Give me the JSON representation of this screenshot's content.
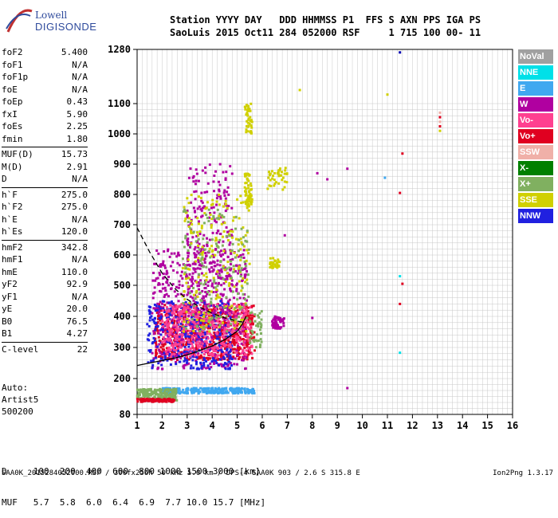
{
  "logo": {
    "line1": "Lowell",
    "line2": "DIGISONDE"
  },
  "header": {
    "row1": "Station YYYY DAY   DDD HHMMSS P1  FFS S AXN PPS IGA PS",
    "row2": "SaoLuis 2015 Oct11 284 052000 RSF     1 715 100 00- 11"
  },
  "params": [
    {
      "group": [
        {
          "label": "foF2",
          "value": "5.400"
        },
        {
          "label": "foF1",
          "value": "N/A"
        },
        {
          "label": "foF1p",
          "value": "N/A"
        },
        {
          "label": "foE",
          "value": "N/A"
        },
        {
          "label": "foEp",
          "value": "0.43"
        },
        {
          "label": "fxI",
          "value": "5.90"
        },
        {
          "label": "foEs",
          "value": "2.25"
        },
        {
          "label": "fmin",
          "value": "1.80"
        }
      ]
    },
    {
      "group": [
        {
          "label": "MUF(D)",
          "value": "15.73"
        },
        {
          "label": "M(D)",
          "value": "2.91"
        },
        {
          "label": "D",
          "value": "N/A"
        }
      ]
    },
    {
      "group": [
        {
          "label": "h`F",
          "value": "275.0"
        },
        {
          "label": "h`F2",
          "value": "275.0"
        },
        {
          "label": "h`E",
          "value": "N/A"
        },
        {
          "label": "h`Es",
          "value": "120.0"
        }
      ]
    },
    {
      "group": [
        {
          "label": "hmF2",
          "value": "342.8"
        },
        {
          "label": "hmF1",
          "value": "N/A"
        },
        {
          "label": "hmE",
          "value": "110.0"
        },
        {
          "label": "yF2",
          "value": "92.9"
        },
        {
          "label": "yF1",
          "value": "N/A"
        },
        {
          "label": "yE",
          "value": "20.0"
        },
        {
          "label": "B0",
          "value": "76.5"
        },
        {
          "label": "B1",
          "value": "4.27"
        }
      ]
    },
    {
      "group": [
        {
          "label": "C-level",
          "value": "22"
        }
      ]
    }
  ],
  "auto": {
    "line1": "Auto:",
    "line2": "Artist5",
    "line3": "500200"
  },
  "legend": [
    {
      "label": "NoVal",
      "color": "#a0a0a0"
    },
    {
      "label": "NNE",
      "color": "#00e0e8"
    },
    {
      "label": "E",
      "color": "#40a8f0"
    },
    {
      "label": "W",
      "color": "#b000a0"
    },
    {
      "label": "Vo-",
      "color": "#ff4090"
    },
    {
      "label": "Vo+",
      "color": "#e00020"
    },
    {
      "label": "SSW",
      "color": "#f0b0a8"
    },
    {
      "label": "X-",
      "color": "#008000"
    },
    {
      "label": "X+",
      "color": "#80b060"
    },
    {
      "label": "SSE",
      "color": "#d0d000"
    },
    {
      "label": "NNW",
      "color": "#2020e0"
    }
  ],
  "distance_table": {
    "row1": "D     100  200  400  600  800 1000 1500 3000 [km]",
    "row2": "MUF   5.7  5.8  6.0  6.4  6.9  7.7 10.0 15.7 [MHz]"
  },
  "footer": {
    "text": "SAA0K_2015284052000.RSF / 300fx256h 50 kHz 5.0 km / DPS-4 SAA0K 903 / 2.6 S 315.8 E",
    "version": "Ion2Png 1.3.17"
  },
  "chart_data": {
    "type": "scatter",
    "xlabel": "",
    "ylabel": "",
    "xlim": [
      1,
      16
    ],
    "ylim": [
      80,
      1280
    ],
    "x_ticks": [
      1,
      2,
      3,
      4,
      5,
      6,
      7,
      8,
      9,
      10,
      11,
      12,
      13,
      14,
      15,
      16
    ],
    "y_ticks": [
      80,
      200,
      300,
      400,
      500,
      600,
      700,
      800,
      900,
      1000,
      1100,
      1280
    ],
    "grid": true,
    "legend_position": "right",
    "profile_solid": [
      [
        1.0,
        242
      ],
      [
        1.5,
        250
      ],
      [
        2.0,
        258
      ],
      [
        2.5,
        266
      ],
      [
        3.0,
        276
      ],
      [
        3.5,
        290
      ],
      [
        4.0,
        305
      ],
      [
        4.5,
        325
      ],
      [
        5.0,
        352
      ],
      [
        5.2,
        375
      ],
      [
        5.35,
        400
      ]
    ],
    "profile_dashed": [
      [
        1.0,
        690
      ],
      [
        1.5,
        610
      ],
      [
        2.0,
        540
      ],
      [
        2.5,
        490
      ],
      [
        3.0,
        455
      ],
      [
        3.5,
        430
      ],
      [
        4.0,
        410
      ],
      [
        4.5,
        395
      ],
      [
        5.0,
        385
      ],
      [
        5.35,
        380
      ]
    ],
    "clusters": [
      {
        "name": "F-trace main",
        "color": "#e00020",
        "x": [
          1.7,
          5.7
        ],
        "y": [
          260,
          440
        ],
        "n": 700
      },
      {
        "name": "F-trace W",
        "color": "#b000a0",
        "x": [
          1.6,
          5.4
        ],
        "y": [
          230,
          620
        ],
        "n": 500
      },
      {
        "name": "F-trace NNW",
        "color": "#2020e0",
        "x": [
          1.4,
          4.8
        ],
        "y": [
          230,
          450
        ],
        "n": 350
      },
      {
        "name": "F-trace Vo-",
        "color": "#ff4090",
        "x": [
          2.0,
          5.6
        ],
        "y": [
          270,
          440
        ],
        "n": 400
      },
      {
        "name": "spread top",
        "color": "#b000a0",
        "x": [
          3.0,
          4.8
        ],
        "y": [
          400,
          900
        ],
        "n": 250
      },
      {
        "name": "spread SSE",
        "color": "#d0d000",
        "x": [
          2.8,
          5.5
        ],
        "y": [
          350,
          800
        ],
        "n": 200
      },
      {
        "name": "spread X+",
        "color": "#80b060",
        "x": [
          2.8,
          5.5
        ],
        "y": [
          350,
          750
        ],
        "n": 150
      },
      {
        "name": "Es E",
        "color": "#40a8f0",
        "x": [
          2.0,
          5.7
        ],
        "y": [
          150,
          168
        ],
        "n": 260
      },
      {
        "name": "Es mixed",
        "color": "#80b060",
        "x": [
          1.0,
          2.6
        ],
        "y": [
          125,
          165
        ],
        "n": 200
      },
      {
        "name": "Es low red",
        "color": "#e00020",
        "x": [
          1.0,
          2.5
        ],
        "y": [
          122,
          132
        ],
        "n": 80
      },
      {
        "name": "second hop SSE",
        "color": "#d0d000",
        "x": [
          5.3,
          5.6
        ],
        "y": [
          760,
          870
        ],
        "n": 60
      },
      {
        "name": "third hop SSE",
        "color": "#d0d000",
        "x": [
          5.3,
          5.6
        ],
        "y": [
          1000,
          1100
        ],
        "n": 40
      },
      {
        "name": "high SSE tail",
        "color": "#d0d000",
        "x": [
          6.2,
          7.0
        ],
        "y": [
          810,
          890
        ],
        "n": 40
      },
      {
        "name": "mid SSE tail",
        "color": "#d0d000",
        "x": [
          6.3,
          6.7
        ],
        "y": [
          555,
          590
        ],
        "n": 30
      },
      {
        "name": "W patch",
        "color": "#b000a0",
        "x": [
          6.4,
          6.9
        ],
        "y": [
          360,
          400
        ],
        "n": 60
      },
      {
        "name": "X+ patch",
        "color": "#80b060",
        "x": [
          5.5,
          6.0
        ],
        "y": [
          300,
          420
        ],
        "n": 40
      }
    ],
    "sparse_points": [
      {
        "x": 11.5,
        "y": 1270,
        "color": "#0000b0"
      },
      {
        "x": 11.0,
        "y": 1130,
        "color": "#d0d000"
      },
      {
        "x": 7.5,
        "y": 1145,
        "color": "#d0d000"
      },
      {
        "x": 8.2,
        "y": 870,
        "color": "#b000a0"
      },
      {
        "x": 8.6,
        "y": 850,
        "color": "#b000a0"
      },
      {
        "x": 9.4,
        "y": 885,
        "color": "#b000a0"
      },
      {
        "x": 10.9,
        "y": 855,
        "color": "#40a8f0"
      },
      {
        "x": 11.6,
        "y": 935,
        "color": "#e00020"
      },
      {
        "x": 11.5,
        "y": 805,
        "color": "#e00020"
      },
      {
        "x": 11.5,
        "y": 530,
        "color": "#00e0e8"
      },
      {
        "x": 11.6,
        "y": 505,
        "color": "#e00020"
      },
      {
        "x": 11.5,
        "y": 440,
        "color": "#e00020"
      },
      {
        "x": 11.5,
        "y": 283,
        "color": "#00e0e8"
      },
      {
        "x": 9.4,
        "y": 168,
        "color": "#b000a0"
      },
      {
        "x": 13.1,
        "y": 1070,
        "color": "#f0b0a8"
      },
      {
        "x": 13.1,
        "y": 1040,
        "color": "#f0b0a8"
      },
      {
        "x": 13.1,
        "y": 1025,
        "color": "#e00020"
      },
      {
        "x": 13.1,
        "y": 1010,
        "color": "#d0d000"
      },
      {
        "x": 13.1,
        "y": 1055,
        "color": "#e00020"
      },
      {
        "x": 6.9,
        "y": 665,
        "color": "#b000a0"
      },
      {
        "x": 8.0,
        "y": 395,
        "color": "#b000a0"
      }
    ]
  }
}
